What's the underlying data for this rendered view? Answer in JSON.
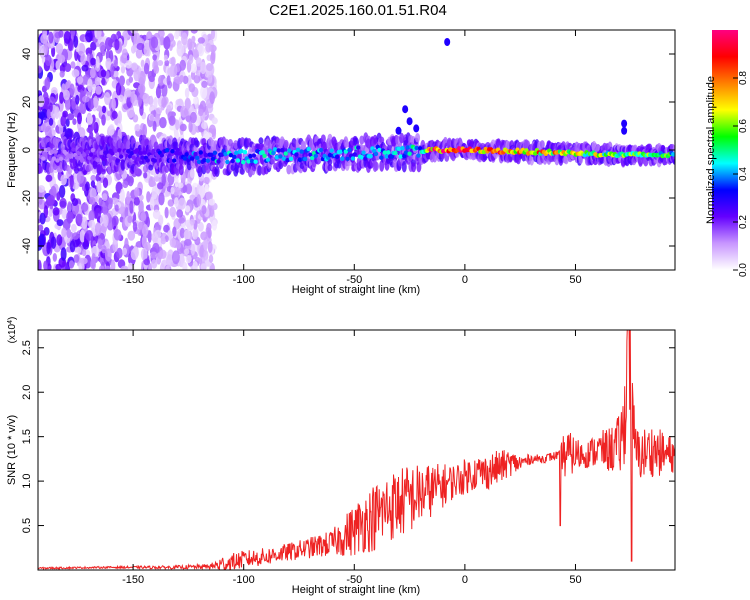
{
  "title": "C2E1.2025.160.01.51.R04",
  "chart_data": [
    {
      "type": "heatmap",
      "xlabel": "Height of straight line (km)",
      "ylabel": "Frequency (Hz)",
      "xlim": [
        -193,
        95
      ],
      "ylim": [
        -50,
        50
      ],
      "x_ticks": [
        -150,
        -100,
        -50,
        0,
        50
      ],
      "y_ticks": [
        -40,
        -20,
        0,
        20,
        40
      ],
      "colorbar": {
        "label": "Normalized spectral amplitude",
        "range": [
          0,
          1
        ],
        "ticks": [
          "0.0",
          "0.2",
          "0.4",
          "0.6",
          "0.8"
        ],
        "colors": [
          "#ffffff",
          "#c896ff",
          "#6400ff",
          "#0000ff",
          "#00ffff",
          "#00ff00",
          "#ffff00",
          "#ff8000",
          "#ff0000",
          "#ff0080"
        ]
      },
      "ridge": [
        {
          "x": -193,
          "freq": -2,
          "amp": 0.15
        },
        {
          "x": -140,
          "freq": -2,
          "amp": 0.3
        },
        {
          "x": -110,
          "freq": -3,
          "amp": 0.45
        },
        {
          "x": -80,
          "freq": -2,
          "amp": 0.45
        },
        {
          "x": -40,
          "freq": -1,
          "amp": 0.45
        },
        {
          "x": -20,
          "freq": -1,
          "amp": 0.5
        },
        {
          "x": -15,
          "freq": 0,
          "amp": 0.95
        },
        {
          "x": 0,
          "freq": 0,
          "amp": 0.95
        },
        {
          "x": 40,
          "freq": -1,
          "amp": 0.8
        },
        {
          "x": 70,
          "freq": -2,
          "amp": 0.6
        },
        {
          "x": 95,
          "freq": -2,
          "amp": 0.6
        }
      ]
    },
    {
      "type": "line",
      "xlabel": "Height of straight line (km)",
      "ylabel": "SNR (10 * v/v)",
      "y_scale_label": "(x10^4)",
      "xlim": [
        -193,
        95
      ],
      "ylim": [
        0,
        2.7
      ],
      "x_ticks": [
        -150,
        -100,
        -50,
        0,
        50
      ],
      "y_ticks": [
        "0.5",
        "1.0",
        "1.5",
        "2.0",
        "2.5"
      ],
      "line_color": "#ee2222",
      "series": [
        {
          "x": [
            -193,
            -160,
            -130,
            -115,
            -110,
            -100,
            -90,
            -80,
            -70,
            -60,
            -50,
            -45,
            -40,
            -35,
            -30,
            -25,
            -20,
            -15,
            -10,
            -5,
            0,
            5,
            10,
            15,
            20,
            25,
            30,
            35,
            40,
            43,
            45,
            50,
            55,
            60,
            65,
            70,
            72,
            74,
            76,
            78,
            80,
            85,
            90,
            95
          ],
          "values": [
            0.02,
            0.03,
            0.03,
            0.04,
            0.06,
            0.12,
            0.15,
            0.2,
            0.25,
            0.3,
            0.45,
            0.55,
            0.6,
            0.7,
            0.75,
            0.8,
            0.85,
            0.9,
            0.95,
            1.0,
            1.05,
            1.1,
            1.1,
            1.15,
            1.2,
            1.2,
            1.25,
            1.25,
            1.28,
            1.3,
            1.3,
            1.3,
            1.3,
            1.35,
            1.35,
            1.4,
            1.6,
            2.7,
            1.5,
            1.3,
            1.3,
            1.35,
            1.3,
            1.3
          ],
          "noise": [
            0.01,
            0.01,
            0.02,
            0.03,
            0.1,
            0.1,
            0.1,
            0.1,
            0.12,
            0.15,
            0.3,
            0.35,
            0.4,
            0.4,
            0.4,
            0.4,
            0.35,
            0.3,
            0.25,
            0.2,
            0.2,
            0.2,
            0.2,
            0.2,
            0.15,
            0.1,
            0.05,
            0.05,
            0.05,
            0.05,
            0.3,
            0.2,
            0.15,
            0.2,
            0.25,
            0.35,
            0.5,
            0.8,
            0.5,
            0.3,
            0.3,
            0.3,
            0.25,
            0.2
          ]
        }
      ]
    }
  ]
}
